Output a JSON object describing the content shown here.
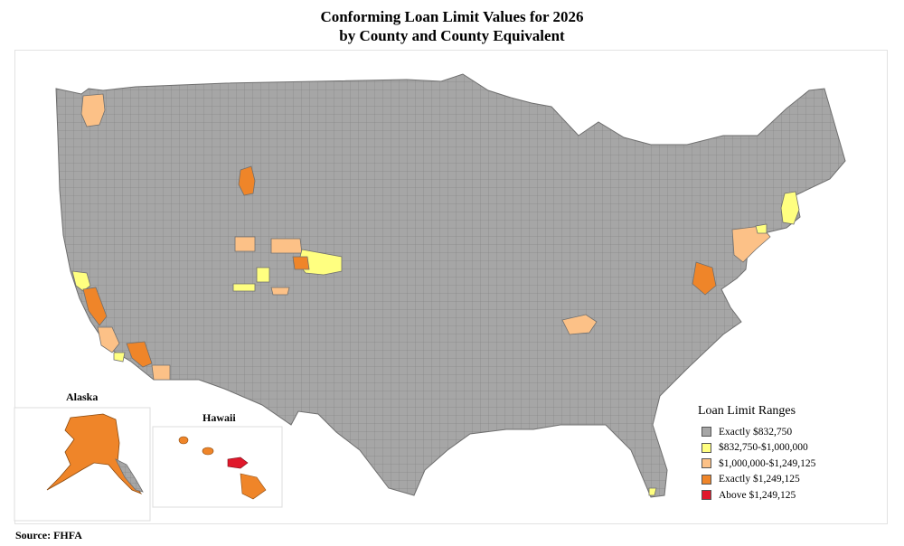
{
  "title_line1": "Conforming Loan Limit Values for 2026",
  "title_line2": "by County and County Equivalent",
  "insets": {
    "alaska_label": "Alaska",
    "hawaii_label": "Hawaii"
  },
  "legend": {
    "title": "Loan Limit Ranges",
    "items": [
      {
        "label": "Exactly $832,750",
        "color": "#a6a6a6"
      },
      {
        "label": "$832,750-$1,000,000",
        "color": "#ffff80"
      },
      {
        "label": "$1,000,000-$1,249,125",
        "color": "#fcc187"
      },
      {
        "label": "Exactly $1,249,125",
        "color": "#ef8529"
      },
      {
        "label": "Above $1,249,125",
        "color": "#e0182b"
      }
    ]
  },
  "source": "Source: FHFA",
  "colors": {
    "base": "#a6a6a6",
    "border": "#6f6f6f",
    "yellow": "#ffff80",
    "peach": "#fcc187",
    "orange": "#ef8529",
    "red": "#e0182b"
  }
}
